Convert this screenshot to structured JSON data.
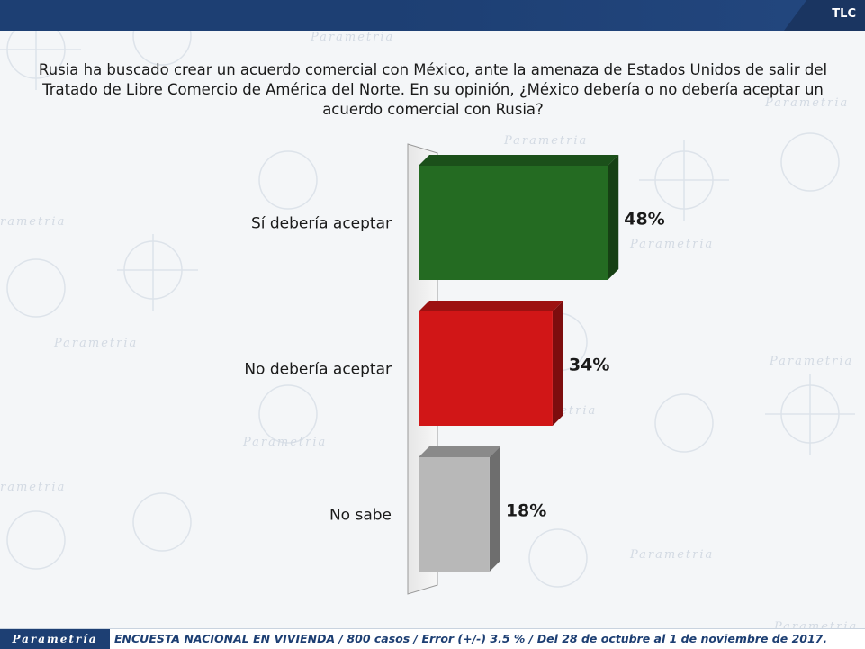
{
  "header": {
    "section_label": "TLC"
  },
  "question": "Rusia ha buscado crear un acuerdo comercial con México, ante la amenaza de Estados Unidos de salir del Tratado de Libre Comercio de América del Norte. En su opinión, ¿México debería o no debería aceptar un acuerdo comercial con Rusia?",
  "chart_data": {
    "type": "bar",
    "orientation": "horizontal",
    "categories": [
      "Sí debería aceptar",
      "No debería aceptar",
      "No sabe"
    ],
    "values": [
      48,
      34,
      18
    ],
    "data_labels": [
      "48%",
      "34%",
      "18%"
    ],
    "colors": [
      "#246b22",
      "#d11617",
      "#b8b8b8"
    ],
    "grid": false,
    "legend": "none",
    "title": "",
    "xlabel": "",
    "ylabel": ""
  },
  "footer": {
    "brand": "Parametría",
    "note": "ENCUESTA NACIONAL EN VIVIENDA / 800 casos / Error (+/-) 3.5 % / Del 28 de octubre al 1 de noviembre de 2017."
  }
}
